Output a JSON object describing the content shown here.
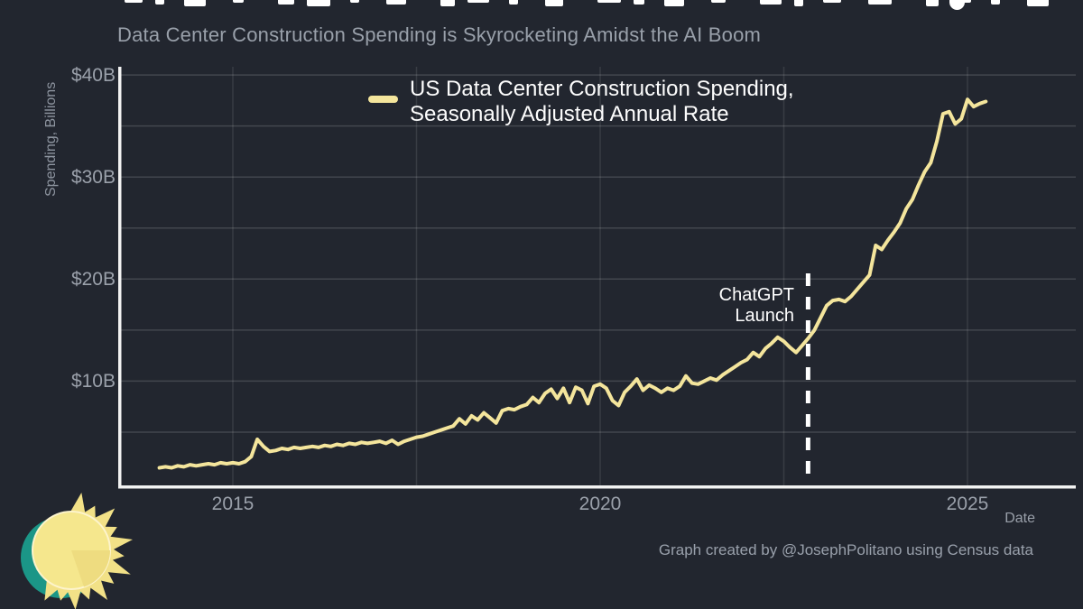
{
  "header": {
    "subtitle": "Data Center Construction Spending is Skyrocketing Amidst the AI Boom"
  },
  "legend": {
    "line1": "US Data Center Construction Spending,",
    "line2": "Seasonally Adjusted Annual Rate"
  },
  "footer": {
    "credit": "Graph created by @JosephPolitano using Census data"
  },
  "colors": {
    "background": "#22262f",
    "line": "#f4e59c",
    "axis": "#f2f2f2",
    "tick_text": "#9aa0aa",
    "annotation_text": "#ffffff",
    "logo_teal": "#1b9687",
    "logo_yellow": "#f5e78d"
  },
  "chart_data": {
    "type": "line",
    "title": "Data Center Construction Spending is Skyrocketing Amidst the AI Boom",
    "xlabel": "Date",
    "ylabel": "Spending, Billions",
    "unit": "USD billions, seasonally adjusted annual rate",
    "xlim": [
      2013.95,
      2026.4
    ],
    "ylim": [
      0,
      40
    ],
    "grid": true,
    "x_gridlines": [
      2015,
      2017.5,
      2020,
      2022.5,
      2025
    ],
    "y_gridlines": [
      5,
      10,
      15,
      20,
      25,
      30,
      35,
      40
    ],
    "x_ticks": [
      {
        "value": 2015,
        "label": "2015"
      },
      {
        "value": 2020,
        "label": "2020"
      },
      {
        "value": 2025,
        "label": "2025"
      }
    ],
    "y_ticks": [
      {
        "value": 10,
        "label": "$10B"
      },
      {
        "value": 20,
        "label": "$20B"
      },
      {
        "value": 30,
        "label": "$30B"
      },
      {
        "value": 40,
        "label": "$40B"
      }
    ],
    "annotation": {
      "line1": "ChatGPT",
      "line2": "Launch",
      "x": 2022.83
    },
    "legend_position": "top-center",
    "series": [
      {
        "name": "US Data Center Construction Spending, Seasonally Adjusted Annual Rate",
        "color": "#f4e59c",
        "frequency": "monthly",
        "start": "2014-01",
        "end": "2025-04",
        "values": [
          1.5,
          1.6,
          1.5,
          1.7,
          1.6,
          1.8,
          1.7,
          1.8,
          1.9,
          1.8,
          2.0,
          1.9,
          2.0,
          1.9,
          2.1,
          2.6,
          4.3,
          3.6,
          3.1,
          3.2,
          3.4,
          3.3,
          3.5,
          3.4,
          3.5,
          3.6,
          3.5,
          3.7,
          3.6,
          3.8,
          3.7,
          3.9,
          3.8,
          4.0,
          3.9,
          4.0,
          4.1,
          3.9,
          4.2,
          3.8,
          4.1,
          4.3,
          4.5,
          4.6,
          4.8,
          5.0,
          5.2,
          5.4,
          5.6,
          6.3,
          5.8,
          6.6,
          6.2,
          6.9,
          6.4,
          5.9,
          7.1,
          7.3,
          7.2,
          7.5,
          7.7,
          8.4,
          7.9,
          8.8,
          9.2,
          8.3,
          9.3,
          7.9,
          9.4,
          9.1,
          7.8,
          9.5,
          9.7,
          9.3,
          8.1,
          7.6,
          8.9,
          9.5,
          10.2,
          9.1,
          9.6,
          9.3,
          8.9,
          9.3,
          9.1,
          9.5,
          10.5,
          9.8,
          9.7,
          10.0,
          10.3,
          10.1,
          10.6,
          11.0,
          11.4,
          11.8,
          12.1,
          12.8,
          12.4,
          13.2,
          13.7,
          14.3,
          13.9,
          13.3,
          12.8,
          13.5,
          14.2,
          15.0,
          16.2,
          17.4,
          17.9,
          18.0,
          17.8,
          18.3,
          19.0,
          19.7,
          20.4,
          23.3,
          22.9,
          23.8,
          24.6,
          25.5,
          26.9,
          27.8,
          29.2,
          30.5,
          31.4,
          33.5,
          36.2,
          36.4,
          35.2,
          35.7,
          37.6,
          36.9,
          37.2,
          37.4
        ]
      }
    ]
  }
}
